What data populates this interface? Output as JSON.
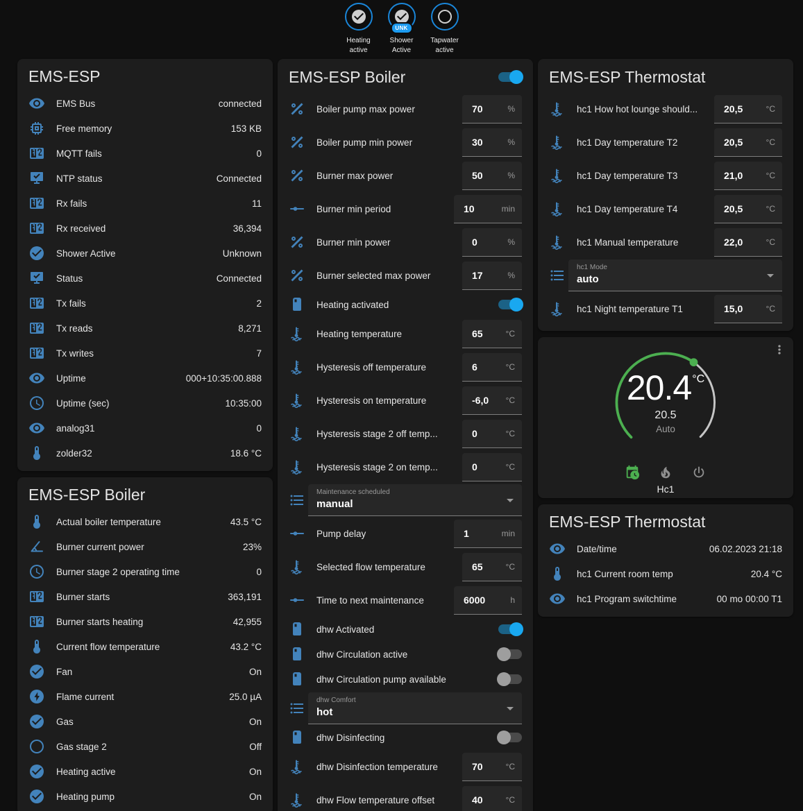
{
  "colors": {
    "accent_blue": "#4383bb",
    "toggle_on": "#19a8f0",
    "green": "#4caf50",
    "badge_ring": "#1a86d9"
  },
  "badges": [
    {
      "icon": "check-circle",
      "lines": "Heating\nactive",
      "pill": ""
    },
    {
      "icon": "check-circle",
      "lines": "Shower\nActive",
      "pill": "UNK"
    },
    {
      "icon": "circle-outline",
      "lines": "Tapwater\nactive",
      "pill": ""
    }
  ],
  "cards": {
    "system": {
      "title": "EMS-ESP",
      "rows": [
        {
          "type": "sensor",
          "icon": "eye",
          "label": "EMS Bus",
          "value": "connected"
        },
        {
          "type": "sensor",
          "icon": "chip",
          "label": "Free memory",
          "value": "153 KB"
        },
        {
          "type": "sensor",
          "icon": "counter",
          "label": "MQTT fails",
          "value": "0"
        },
        {
          "type": "sensor",
          "icon": "network",
          "label": "NTP status",
          "value": "Connected"
        },
        {
          "type": "sensor",
          "icon": "counter",
          "label": "Rx fails",
          "value": "11"
        },
        {
          "type": "sensor",
          "icon": "counter",
          "label": "Rx received",
          "value": "36,394"
        },
        {
          "type": "sensor",
          "icon": "check-circle",
          "label": "Shower Active",
          "value": "Unknown"
        },
        {
          "type": "sensor",
          "icon": "network",
          "label": "Status",
          "value": "Connected"
        },
        {
          "type": "sensor",
          "icon": "counter",
          "label": "Tx fails",
          "value": "2"
        },
        {
          "type": "sensor",
          "icon": "counter",
          "label": "Tx reads",
          "value": "8,271"
        },
        {
          "type": "sensor",
          "icon": "counter",
          "label": "Tx writes",
          "value": "7"
        },
        {
          "type": "sensor",
          "icon": "eye",
          "label": "Uptime",
          "value": "000+10:35:00.888"
        },
        {
          "type": "sensor",
          "icon": "clock",
          "label": "Uptime (sec)",
          "value": "10:35:00"
        },
        {
          "type": "sensor",
          "icon": "eye",
          "label": "analog31",
          "value": "0"
        },
        {
          "type": "sensor",
          "icon": "thermometer",
          "label": "zolder32",
          "value": "18.6 °C"
        }
      ]
    },
    "boiler_sensors": {
      "title": "EMS-ESP Boiler",
      "rows": [
        {
          "type": "sensor",
          "icon": "thermometer",
          "label": "Actual boiler temperature",
          "value": "43.5 °C"
        },
        {
          "type": "sensor",
          "icon": "angle",
          "label": "Burner current power",
          "value": "23%"
        },
        {
          "type": "sensor",
          "icon": "clock",
          "label": "Burner stage 2 operating time",
          "value": "0"
        },
        {
          "type": "sensor",
          "icon": "counter",
          "label": "Burner starts",
          "value": "363,191"
        },
        {
          "type": "sensor",
          "icon": "counter",
          "label": "Burner starts heating",
          "value": "42,955"
        },
        {
          "type": "sensor",
          "icon": "thermometer",
          "label": "Current flow temperature",
          "value": "43.2 °C"
        },
        {
          "type": "sensor",
          "icon": "check-circle",
          "label": "Fan",
          "value": "On"
        },
        {
          "type": "sensor",
          "icon": "flash-circle",
          "label": "Flame current",
          "value": "25.0 µA"
        },
        {
          "type": "sensor",
          "icon": "check-circle",
          "label": "Gas",
          "value": "On"
        },
        {
          "type": "sensor",
          "icon": "circle-outline",
          "label": "Gas stage 2",
          "value": "Off"
        },
        {
          "type": "sensor",
          "icon": "check-circle",
          "label": "Heating active",
          "value": "On"
        },
        {
          "type": "sensor",
          "icon": "check-circle",
          "label": "Heating pump",
          "value": "On"
        }
      ]
    },
    "boiler_controls": {
      "title": "EMS-ESP Boiler",
      "header_toggle_on": true,
      "rows": [
        {
          "type": "number",
          "icon": "percent",
          "label": "Boiler pump max power",
          "value": "70",
          "unit": "%",
          "wide": false
        },
        {
          "type": "number",
          "icon": "percent",
          "label": "Boiler pump min power",
          "value": "30",
          "unit": "%",
          "wide": false
        },
        {
          "type": "number",
          "icon": "percent",
          "label": "Burner max power",
          "value": "50",
          "unit": "%",
          "wide": false
        },
        {
          "type": "number",
          "icon": "slider",
          "label": "Burner min period",
          "value": "10",
          "unit": "min",
          "wide": true
        },
        {
          "type": "number",
          "icon": "percent",
          "label": "Burner min power",
          "value": "0",
          "unit": "%",
          "wide": false
        },
        {
          "type": "number",
          "icon": "percent",
          "label": "Burner selected max power",
          "value": "17",
          "unit": "%",
          "wide": false
        },
        {
          "type": "toggle",
          "icon": "boiler",
          "label": "Heating activated",
          "on": true
        },
        {
          "type": "number",
          "icon": "coolant",
          "label": "Heating temperature",
          "value": "65",
          "unit": "°C",
          "wide": false
        },
        {
          "type": "number",
          "icon": "coolant",
          "label": "Hysteresis off temperature",
          "value": "6",
          "unit": "°C",
          "wide": false
        },
        {
          "type": "number",
          "icon": "coolant",
          "label": "Hysteresis on temperature",
          "value": "-6,0",
          "unit": "°C",
          "wide": false
        },
        {
          "type": "number",
          "icon": "coolant",
          "label": "Hysteresis stage 2 off temp...",
          "value": "0",
          "unit": "°C",
          "wide": false
        },
        {
          "type": "number",
          "icon": "coolant",
          "label": "Hysteresis stage 2 on temp...",
          "value": "0",
          "unit": "°C",
          "wide": false
        },
        {
          "type": "select",
          "icon": "list",
          "label": "Maintenance scheduled",
          "value": "manual"
        },
        {
          "type": "number",
          "icon": "slider",
          "label": "Pump delay",
          "value": "1",
          "unit": "min",
          "wide": true
        },
        {
          "type": "number",
          "icon": "coolant",
          "label": "Selected flow temperature",
          "value": "65",
          "unit": "°C",
          "wide": false
        },
        {
          "type": "number",
          "icon": "slider",
          "label": "Time to next maintenance",
          "value": "6000",
          "unit": "h",
          "wide": true
        },
        {
          "type": "toggle",
          "icon": "boiler",
          "label": "dhw Activated",
          "on": true
        },
        {
          "type": "toggle",
          "icon": "boiler",
          "label": "dhw Circulation active",
          "on": false
        },
        {
          "type": "toggle",
          "icon": "boiler",
          "label": "dhw Circulation pump available",
          "on": false
        },
        {
          "type": "select",
          "icon": "list",
          "label": "dhw Comfort",
          "value": "hot"
        },
        {
          "type": "toggle",
          "icon": "boiler",
          "label": "dhw Disinfecting",
          "on": false
        },
        {
          "type": "number",
          "icon": "coolant",
          "label": "dhw Disinfection temperature",
          "value": "70",
          "unit": "°C",
          "wide": false
        },
        {
          "type": "number",
          "icon": "coolant",
          "label": "dhw Flow temperature offset",
          "value": "40",
          "unit": "°C",
          "wide": false
        }
      ]
    },
    "thermostat_controls": {
      "title": "EMS-ESP Thermostat",
      "rows": [
        {
          "type": "number",
          "icon": "coolant",
          "label": "hc1 How hot lounge should...",
          "value": "20,5",
          "unit": "°C",
          "wide": true
        },
        {
          "type": "number",
          "icon": "coolant",
          "label": "hc1 Day temperature T2",
          "value": "20,5",
          "unit": "°C",
          "wide": true
        },
        {
          "type": "number",
          "icon": "coolant",
          "label": "hc1 Day temperature T3",
          "value": "21,0",
          "unit": "°C",
          "wide": true
        },
        {
          "type": "number",
          "icon": "coolant",
          "label": "hc1 Day temperature T4",
          "value": "20,5",
          "unit": "°C",
          "wide": true
        },
        {
          "type": "number",
          "icon": "coolant",
          "label": "hc1 Manual temperature",
          "value": "22,0",
          "unit": "°C",
          "wide": true
        },
        {
          "type": "select",
          "icon": "list",
          "label": "hc1 Mode",
          "value": "auto"
        },
        {
          "type": "number",
          "icon": "coolant",
          "label": "hc1 Night temperature T1",
          "value": "15,0",
          "unit": "°C",
          "wide": true
        }
      ]
    },
    "thermostat_card": {
      "name": "Hc1",
      "current": "20.4",
      "current_unit": "°C",
      "target": "20.5",
      "mode": "Auto",
      "modes": [
        {
          "icon": "calendar-clock",
          "active": true
        },
        {
          "icon": "fire",
          "active": false
        },
        {
          "icon": "power",
          "active": false
        }
      ]
    },
    "thermostat_sensors": {
      "title": "EMS-ESP Thermostat",
      "rows": [
        {
          "type": "sensor",
          "icon": "eye",
          "label": "Date/time",
          "value": "06.02.2023 21:18"
        },
        {
          "type": "sensor",
          "icon": "thermometer",
          "label": "hc1 Current room temp",
          "value": "20.4 °C"
        },
        {
          "type": "sensor",
          "icon": "eye",
          "label": "hc1 Program switchtime",
          "value": "00 mo 00:00 T1"
        }
      ]
    }
  }
}
